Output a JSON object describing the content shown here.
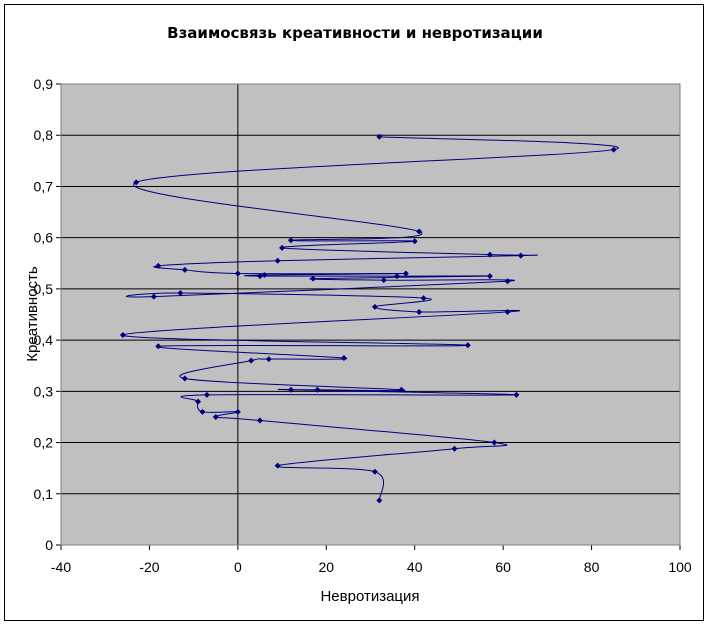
{
  "chart_data": {
    "type": "scatter",
    "title": "Взаимосвязь креативности и невротизации",
    "xlabel": "Невротизация",
    "ylabel": "Креативность",
    "xlim": [
      -40,
      100
    ],
    "ylim": [
      0,
      0.9
    ],
    "x_ticks": [
      "-40",
      "-20",
      "0",
      "20",
      "40",
      "60",
      "80",
      "100"
    ],
    "y_ticks": [
      "0",
      "0,1",
      "0,2",
      "0,3",
      "0,4",
      "0,5",
      "0,6",
      "0,7",
      "0,8",
      "0,9"
    ],
    "grid": "horizontal",
    "legend": "none",
    "line_style": "smoothed",
    "colors": {
      "series": "#000080",
      "plot_background": "#c0c0c0",
      "gridline": "#000000"
    },
    "series": [
      {
        "x": [
          32,
          85,
          -23,
          41,
          12,
          40,
          10,
          57,
          64,
          9,
          -18,
          -12,
          0,
          38,
          6,
          5,
          36,
          57,
          17,
          33,
          61,
          -19,
          -13,
          42,
          31,
          41,
          61,
          -26,
          52,
          -18,
          24,
          7,
          3,
          -12,
          37,
          18,
          12,
          63,
          -7,
          -9,
          -8,
          0,
          -5,
          5,
          58,
          49,
          9,
          31,
          32
        ],
        "y": [
          0.797,
          0.772,
          0.708,
          0.612,
          0.595,
          0.593,
          0.58,
          0.567,
          0.565,
          0.555,
          0.545,
          0.537,
          0.53,
          0.53,
          0.527,
          0.525,
          0.525,
          0.525,
          0.52,
          0.517,
          0.515,
          0.485,
          0.492,
          0.482,
          0.465,
          0.455,
          0.455,
          0.41,
          0.39,
          0.388,
          0.365,
          0.363,
          0.36,
          0.325,
          0.303,
          0.303,
          0.303,
          0.293,
          0.293,
          0.28,
          0.26,
          0.26,
          0.25,
          0.243,
          0.2,
          0.188,
          0.155,
          0.143,
          0.087
        ]
      }
    ]
  }
}
